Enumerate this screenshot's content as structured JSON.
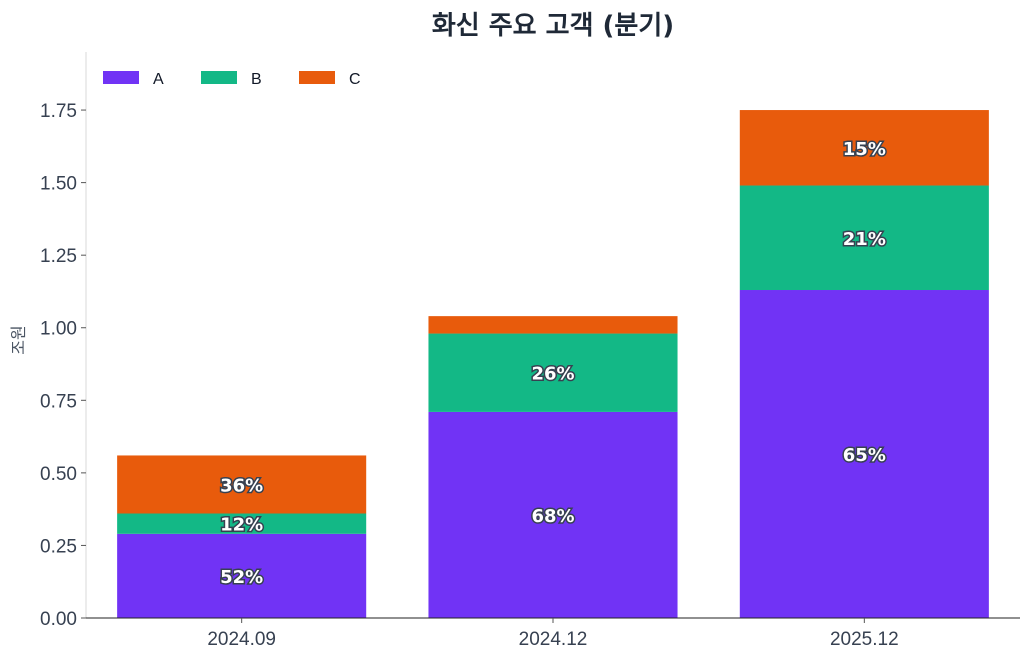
{
  "chart_data": {
    "type": "bar",
    "stacked": true,
    "title": "화신 주요 고객 (분기)",
    "xlabel": "",
    "ylabel": "조원",
    "ylim": [
      0,
      1.95
    ],
    "yticks": [
      "0.00",
      "0.25",
      "0.50",
      "0.75",
      "1.00",
      "1.25",
      "1.50",
      "1.75"
    ],
    "grid": false,
    "legend_position": "top-left",
    "categories": [
      "2024.09",
      "2024.12",
      "2025.12"
    ],
    "series": [
      {
        "name": "A",
        "color": "#7133f5",
        "values": [
          0.29,
          0.71,
          1.13
        ],
        "labels": [
          "52%",
          "68%",
          "65%"
        ]
      },
      {
        "name": "B",
        "color": "#13b886",
        "values": [
          0.07,
          0.27,
          0.36
        ],
        "labels": [
          "12%",
          "26%",
          "21%"
        ]
      },
      {
        "name": "C",
        "color": "#e85b0c",
        "values": [
          0.2,
          0.06,
          0.26
        ],
        "labels": [
          "36%",
          "",
          "15%"
        ]
      }
    ]
  }
}
